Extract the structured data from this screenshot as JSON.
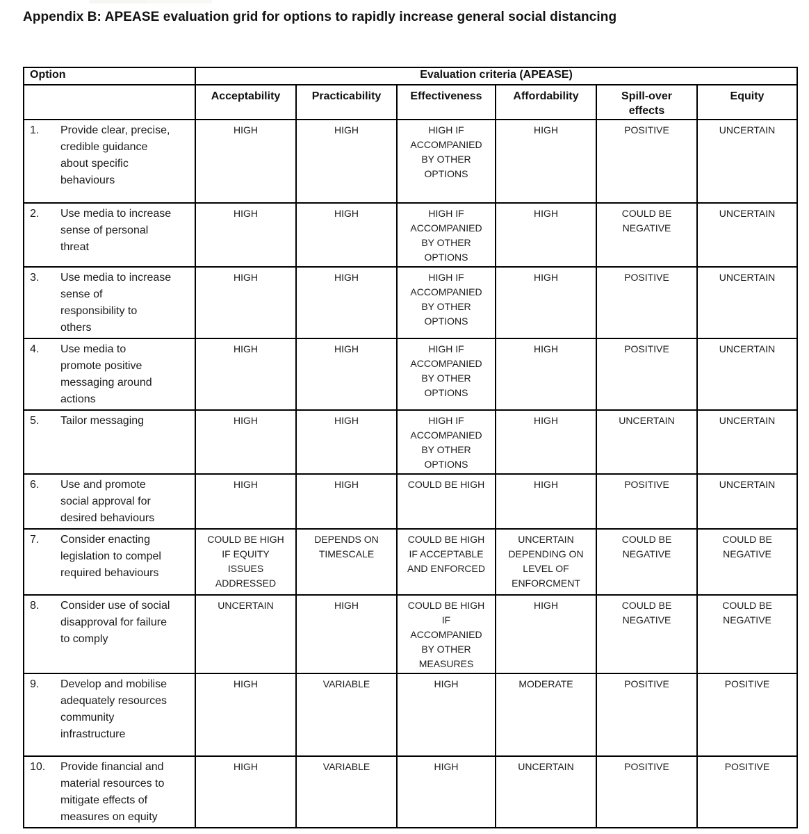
{
  "colors": {
    "background": "#ffffff",
    "border": "#000000",
    "text": "#1b1b1b"
  },
  "title": "Appendix B: APEASE evaluation grid for options to rapidly increase general social distancing",
  "table": {
    "option_header": "Option",
    "criteria_header": "Evaluation criteria (APEASE)",
    "columns": [
      "Acceptability",
      "Practicability",
      "Effectiveness",
      "Affordability",
      "Spill-over\neffects",
      "Equity"
    ],
    "rows": [
      {
        "num": "1.",
        "option": "Provide clear, precise,\ncredible guidance\nabout specific\nbehaviours",
        "values": [
          "HIGH",
          "HIGH",
          "HIGH IF\nACCOMPANIED\nBY OTHER\nOPTIONS",
          "HIGH",
          "POSITIVE",
          "UNCERTAIN"
        ]
      },
      {
        "num": "2.",
        "option": "Use media to increase\nsense of personal\nthreat",
        "values": [
          "HIGH",
          "HIGH",
          "HIGH IF\nACCOMPANIED\nBY OTHER\nOPTIONS",
          "HIGH",
          "COULD BE\nNEGATIVE",
          "UNCERTAIN"
        ]
      },
      {
        "num": "3.",
        "option": "Use media to increase\nsense of\nresponsibility to\nothers",
        "values": [
          "HIGH",
          "HIGH",
          "HIGH IF\nACCOMPANIED\nBY OTHER\nOPTIONS",
          "HIGH",
          "POSITIVE",
          "UNCERTAIN"
        ]
      },
      {
        "num": "4.",
        "option": "Use media to\npromote positive\nmessaging around\nactions",
        "values": [
          "HIGH",
          "HIGH",
          "HIGH IF\nACCOMPANIED\nBY OTHER\nOPTIONS",
          "HIGH",
          "POSITIVE",
          "UNCERTAIN"
        ]
      },
      {
        "num": "5.",
        "option": "Tailor messaging",
        "values": [
          "HIGH",
          "HIGH",
          "HIGH IF\nACCOMPANIED\nBY OTHER\nOPTIONS",
          "HIGH",
          "UNCERTAIN",
          "UNCERTAIN"
        ]
      },
      {
        "num": "6.",
        "option": "Use and promote\nsocial approval for\ndesired behaviours",
        "values": [
          "HIGH",
          "HIGH",
          "COULD BE HIGH",
          "HIGH",
          "POSITIVE",
          "UNCERTAIN"
        ]
      },
      {
        "num": "7.",
        "option": "Consider enacting\nlegislation to compel\nrequired behaviours",
        "values": [
          "COULD BE HIGH\nIF EQUITY\nISSUES\nADDRESSED",
          "DEPENDS ON\nTIMESCALE",
          "COULD BE HIGH\nIF ACCEPTABLE\nAND ENFORCED",
          "UNCERTAIN\nDEPENDING ON\nLEVEL OF\nENFORCMENT",
          "COULD BE\nNEGATIVE",
          "COULD BE\nNEGATIVE"
        ]
      },
      {
        "num": "8.",
        "option": "Consider use of social\ndisapproval for failure\nto comply",
        "values": [
          "UNCERTAIN",
          "HIGH",
          "COULD BE HIGH\nIF\nACCOMPANIED\nBY OTHER\nMEASURES",
          "HIGH",
          "COULD BE\nNEGATIVE",
          "COULD BE\nNEGATIVE"
        ]
      },
      {
        "num": "9.",
        "option": "Develop and mobilise\nadequately resources\ncommunity\ninfrastructure",
        "values": [
          "HIGH",
          "VARIABLE",
          "HIGH",
          "MODERATE",
          "POSITIVE",
          "POSITIVE"
        ]
      },
      {
        "num": "10.",
        "option": "Provide financial and\nmaterial resources to\nmitigate effects of\nmeasures on equity",
        "values": [
          "HIGH",
          "VARIABLE",
          "HIGH",
          "UNCERTAIN",
          "POSITIVE",
          "POSITIVE"
        ]
      }
    ]
  }
}
